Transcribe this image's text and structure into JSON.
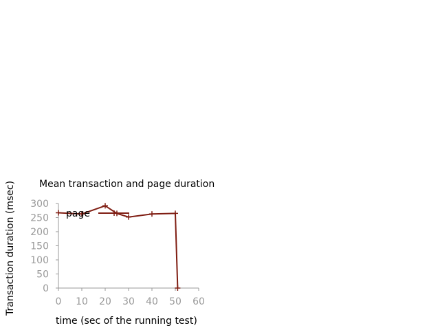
{
  "colors": {
    "series": "#7f1d12",
    "axis": "#999999",
    "tick_text": "#999999",
    "text": "#000000",
    "background": "#ffffff"
  },
  "chart_data": {
    "type": "line",
    "title": "Mean transaction and page duration",
    "xlabel": "time (sec of the running test)",
    "ylabel": "Transaction duration (msec)",
    "xlim": [
      0,
      60
    ],
    "ylim": [
      0,
      300
    ],
    "xticks": [
      0,
      10,
      20,
      30,
      40,
      50,
      60
    ],
    "yticks": [
      0,
      50,
      100,
      150,
      200,
      250,
      300
    ],
    "grid": false,
    "legend": {
      "placement": "top-left",
      "overlap": true
    },
    "series": [
      {
        "name": "page",
        "marker": "plus",
        "x": [
          0,
          10,
          20,
          25,
          30,
          40,
          50,
          51
        ],
        "y": [
          267,
          263,
          292,
          265,
          252,
          263,
          265,
          0
        ]
      }
    ]
  }
}
